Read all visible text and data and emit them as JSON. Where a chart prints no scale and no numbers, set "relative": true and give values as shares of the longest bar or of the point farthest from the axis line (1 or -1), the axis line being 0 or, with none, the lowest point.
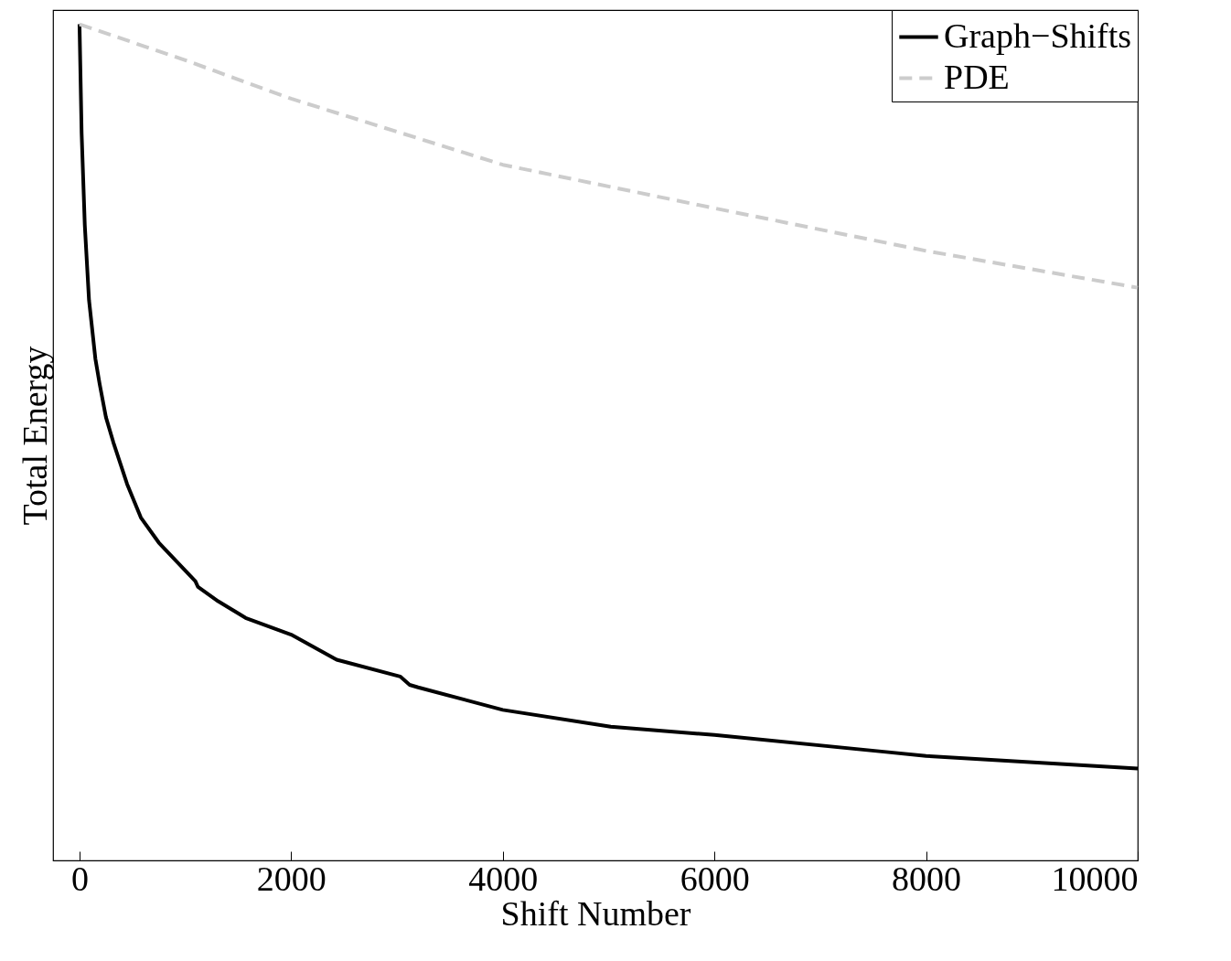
{
  "chart_data": {
    "type": "line",
    "xlabel": "Shift Number",
    "ylabel": "Total Energy",
    "relative": true,
    "xlim": [
      -250,
      10000
    ],
    "xticks": [
      0,
      2000,
      4000,
      6000,
      8000,
      10000
    ],
    "grid": false,
    "legend": "top right",
    "marker": "none",
    "series": [
      {
        "name": "Graph−Shifts",
        "color": "#000000",
        "line_style": "solid",
        "x": [
          0,
          20,
          50,
          90,
          150,
          190,
          250,
          320,
          450,
          580,
          750,
          1095,
          1120,
          1310,
          1570,
          2000,
          2430,
          3030,
          3120,
          3200,
          4000,
          5020,
          6000,
          7600,
          8000,
          10000
        ],
        "values": [
          1.0,
          0.87,
          0.76,
          0.67,
          0.6,
          0.57,
          0.53,
          0.5,
          0.45,
          0.41,
          0.38,
          0.334,
          0.327,
          0.31,
          0.29,
          0.27,
          0.24,
          0.22,
          0.21,
          0.207,
          0.18,
          0.16,
          0.15,
          0.13,
          0.125,
          0.11
        ]
      },
      {
        "name": "PDE",
        "color": "#cccccc",
        "line_style": "dashed",
        "x": [
          0,
          1000,
          2000,
          4000,
          6000,
          8000,
          10000
        ],
        "values": [
          1.0,
          0.957,
          0.911,
          0.832,
          0.78,
          0.729,
          0.685
        ]
      }
    ]
  }
}
